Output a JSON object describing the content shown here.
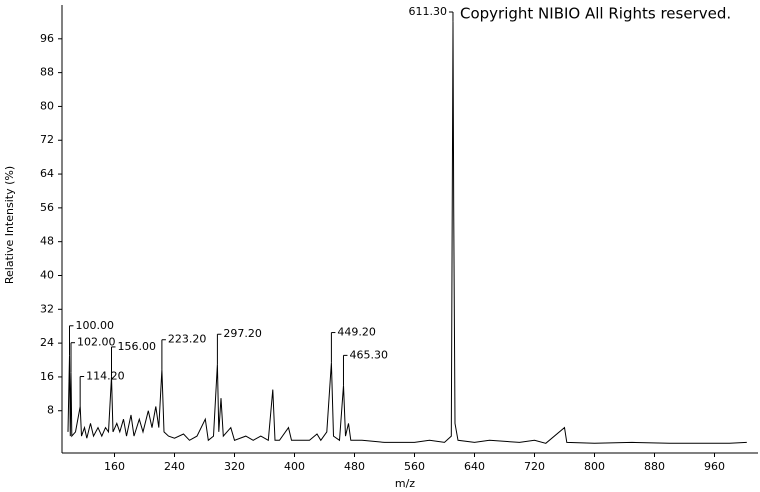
{
  "chart_data": {
    "type": "line",
    "y_label": "Relative Intensity (%)",
    "x_label": "m/z",
    "copyright": "Copyright NIBIO All Rights reserved.",
    "color": "#000000",
    "xlim": [
      90,
      1018
    ],
    "ylim": [
      -2,
      104
    ],
    "xticks": [
      160,
      240,
      320,
      400,
      480,
      560,
      640,
      720,
      800,
      880,
      960
    ],
    "yticks": [
      8,
      16,
      24,
      32,
      40,
      48,
      56,
      64,
      72,
      80,
      88,
      96
    ],
    "x": [
      98,
      100,
      101,
      102,
      103,
      108,
      114.2,
      116,
      120,
      123,
      128,
      132,
      138,
      143,
      148,
      152,
      156,
      158,
      163,
      167,
      172,
      176,
      182,
      186,
      193,
      198,
      205,
      210,
      215,
      219,
      223.2,
      226,
      232,
      240,
      252,
      260,
      270,
      281,
      285,
      292,
      297.2,
      299,
      302,
      305,
      315,
      320,
      335,
      345,
      355,
      365,
      371,
      374,
      380,
      392,
      396,
      410,
      420,
      430,
      435,
      443,
      449.2,
      452,
      460,
      465.3,
      468,
      472,
      475,
      490,
      520,
      560,
      580,
      600,
      609,
      611.3,
      612.3,
      614,
      618,
      640,
      660,
      700,
      720,
      735,
      760,
      763,
      800,
      850,
      900,
      980,
      1003
    ],
    "values": [
      3,
      21,
      2,
      17,
      2,
      3,
      9,
      2,
      4,
      1.5,
      5,
      2,
      4,
      2,
      4,
      3,
      16,
      3,
      5,
      3,
      6,
      2,
      7,
      2,
      6,
      3,
      8,
      4,
      9,
      4,
      17.7,
      3,
      2,
      1.5,
      2.5,
      1,
      2,
      6,
      1,
      2,
      19,
      3,
      11,
      2,
      4,
      1,
      2,
      1,
      2,
      1,
      13,
      1,
      1,
      4,
      1,
      1,
      1,
      2.5,
      1,
      3,
      19.4,
      2,
      1,
      14,
      2,
      5,
      1,
      1,
      0.5,
      0.5,
      1,
      0.5,
      2,
      100,
      56,
      5,
      1,
      0.5,
      1,
      0.5,
      1,
      0.3,
      4,
      0.5,
      0.3,
      0.5,
      0.3,
      0.3,
      0.5
    ],
    "annotations": [
      {
        "x": 100,
        "y": 21,
        "label": "100.00"
      },
      {
        "x": 102,
        "y": 17,
        "label": "102.00"
      },
      {
        "x": 114.2,
        "y": 9,
        "label": "114.20"
      },
      {
        "x": 156,
        "y": 16,
        "label": "156.00"
      },
      {
        "x": 223.2,
        "y": 17.7,
        "label": "223.20"
      },
      {
        "x": 297.2,
        "y": 19,
        "label": "297.20"
      },
      {
        "x": 449.2,
        "y": 19.4,
        "label": "449.20"
      },
      {
        "x": 465.3,
        "y": 14,
        "label": "465.30"
      },
      {
        "x": 611.3,
        "y": 100,
        "label": "611.30"
      }
    ]
  }
}
